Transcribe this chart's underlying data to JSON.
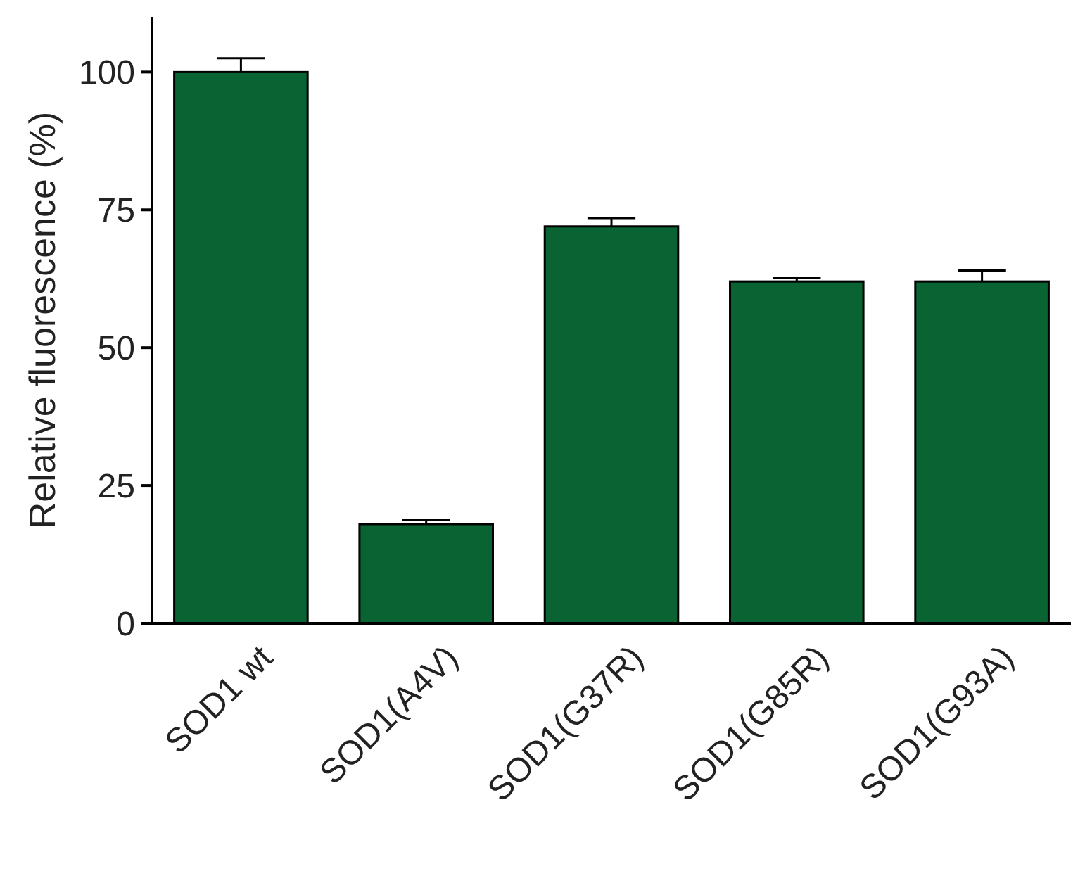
{
  "chart_data": {
    "type": "bar",
    "ylabel": "Relative fluorescence (%)",
    "categories": [
      "SOD1 wt",
      "SOD1(A4V)",
      "SOD1(G37R)",
      "SOD1(G85R)",
      "SOD1(G93A)"
    ],
    "values": [
      100,
      18,
      72,
      62,
      62
    ],
    "errors": [
      2.5,
      0.8,
      1.5,
      0.6,
      2
    ],
    "color": "#0a6332",
    "ylim": [
      0,
      110
    ],
    "yticks": [
      0,
      25,
      50,
      75,
      100
    ],
    "grid": false
  }
}
